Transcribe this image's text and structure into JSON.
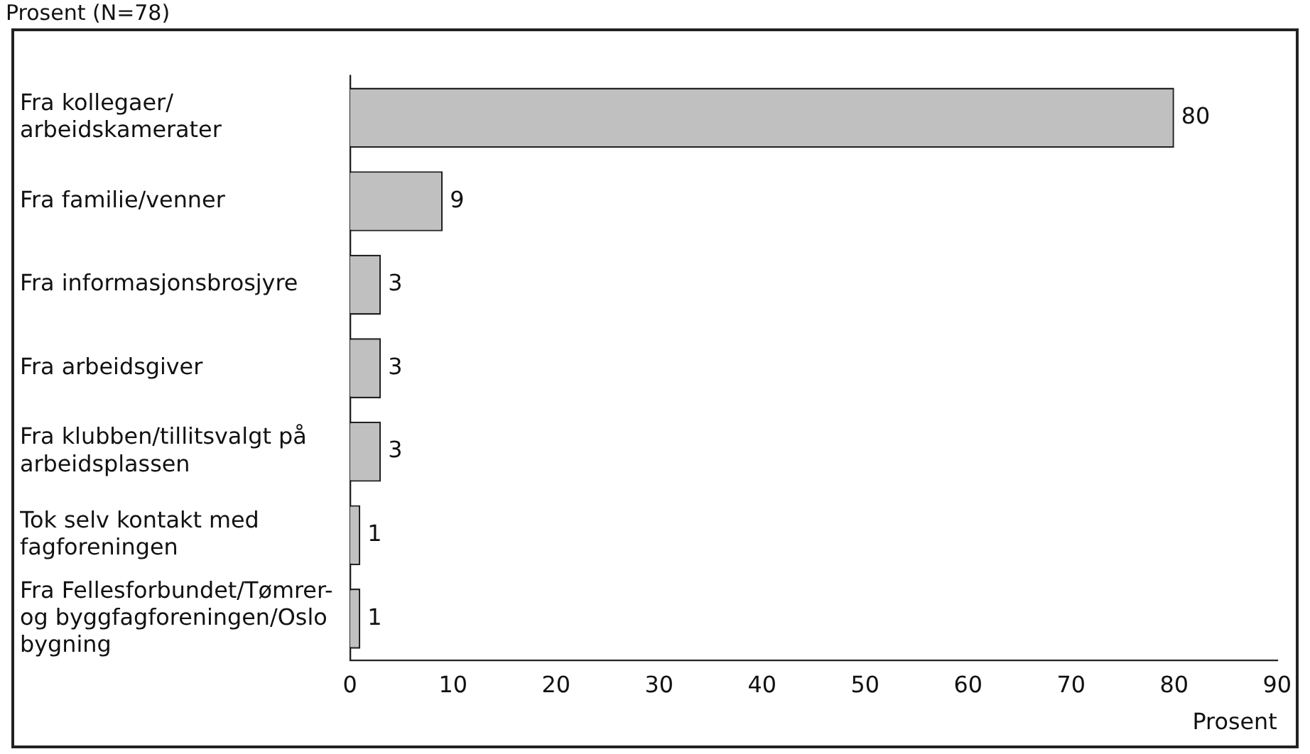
{
  "chart_data": {
    "type": "bar",
    "orientation": "horizontal",
    "title": "Prosent (N=78)",
    "xlabel": "Prosent",
    "categories": [
      "Fra kollegaer/\narbeidskamerater",
      "Fra familie/venner",
      "Fra informasjonsbrosjyre",
      "Fra arbeidsgiver",
      "Fra klubben/tillitsvalgt på\narbeidsplassen",
      "Tok selv kontakt med\nfagforeningen",
      "Fra Fellesforbundet/Tømrer-\nog byggfagforeningen/Oslo\nbygning"
    ],
    "values": [
      80,
      9,
      3,
      3,
      3,
      1,
      1
    ],
    "color": "#c0c0c0",
    "xlim": [
      0,
      90
    ],
    "xticks": [
      0,
      10,
      20,
      30,
      40,
      50,
      60,
      70,
      80,
      90
    ],
    "grid": false,
    "legend": false,
    "data_labels": true
  }
}
